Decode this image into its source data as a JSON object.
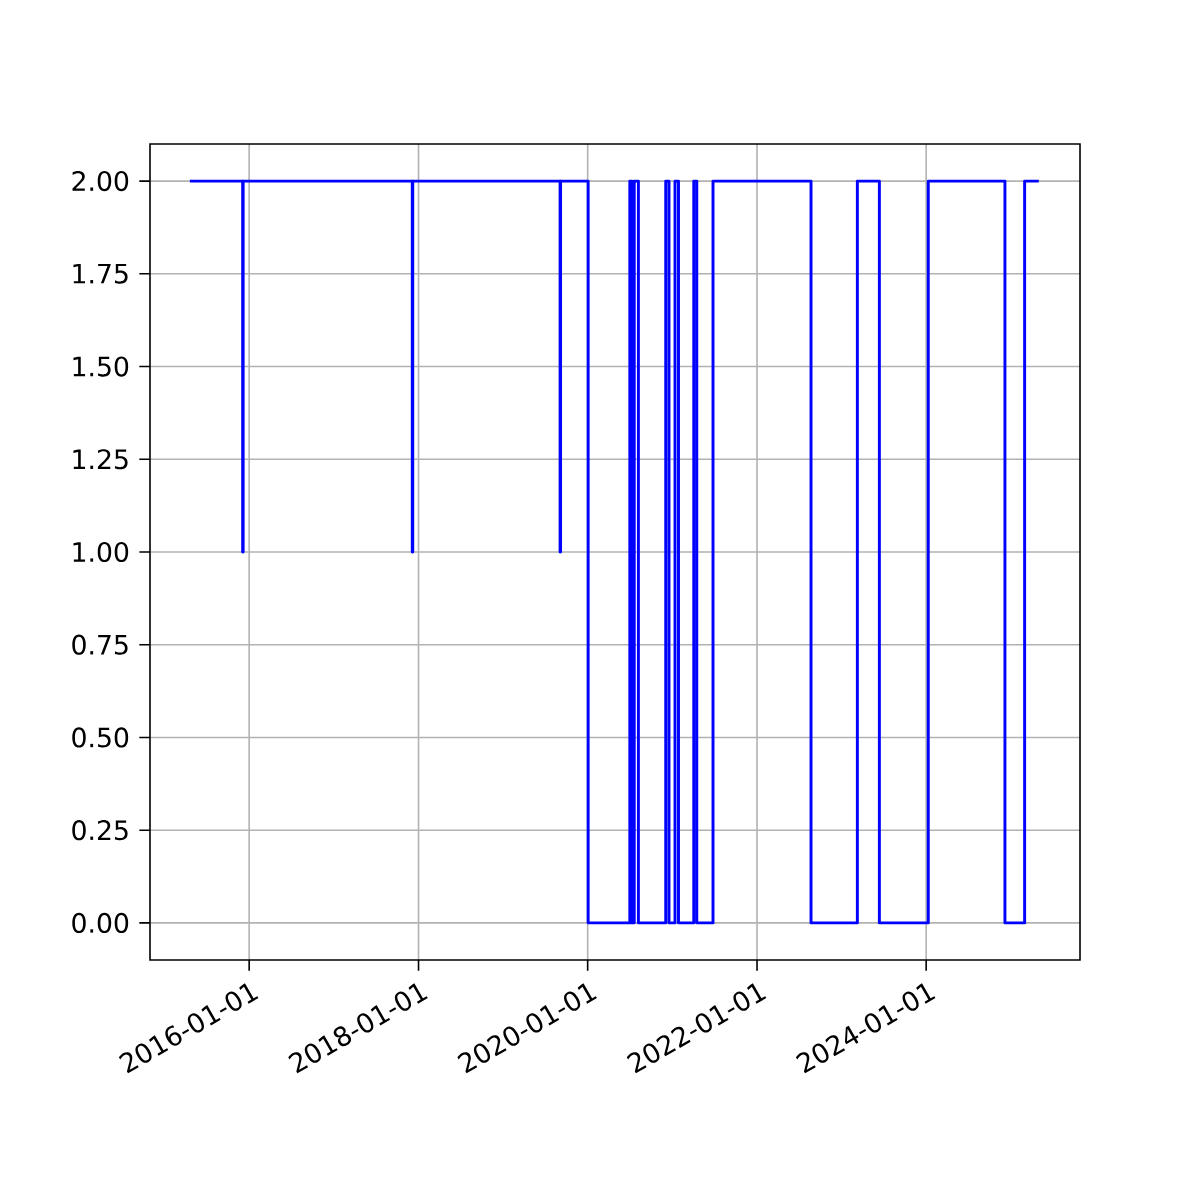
{
  "chart_data": {
    "type": "step",
    "x": [
      "2015-04-20",
      "2015-12-04",
      "2015-12-06",
      "2017-12-05",
      "2017-12-07",
      "2019-09-04",
      "2019-09-06",
      "2020-01-03",
      "2020-07-01",
      "2020-07-10",
      "2020-07-20",
      "2020-08-07",
      "2020-12-03",
      "2020-12-17",
      "2021-01-12",
      "2021-01-27",
      "2021-04-03",
      "2021-04-16",
      "2021-06-25",
      "2022-08-22",
      "2023-03-10",
      "2023-06-13",
      "2024-01-10",
      "2024-12-06",
      "2025-03-01",
      "2025-05-01"
    ],
    "series": [
      {
        "color": "#0000ff",
        "values": [
          2,
          1,
          2,
          1,
          2,
          1,
          2,
          0,
          2,
          0,
          2,
          0,
          2,
          0,
          2,
          0,
          2,
          0,
          2,
          0,
          2,
          0,
          2,
          0,
          2,
          2
        ]
      }
    ],
    "xlim": [
      "2014-10-30",
      "2025-10-26"
    ],
    "xticks": [
      {
        "value": "2016-01-01",
        "label": "2016-01-01"
      },
      {
        "value": "2018-01-01",
        "label": "2018-01-01"
      },
      {
        "value": "2020-01-01",
        "label": "2020-01-01"
      },
      {
        "value": "2022-01-01",
        "label": "2022-01-01"
      },
      {
        "value": "2024-01-01",
        "label": "2024-01-01"
      }
    ],
    "ylim": [
      -0.1,
      2.1
    ],
    "yticks": [
      {
        "value": 0,
        "label": "0.00"
      },
      {
        "value": 0.25,
        "label": "0.25"
      },
      {
        "value": 0.5,
        "label": "0.50"
      },
      {
        "value": 0.75,
        "label": "0.75"
      },
      {
        "value": 1,
        "label": "1.00"
      },
      {
        "value": 1.25,
        "label": "1.25"
      },
      {
        "value": 1.5,
        "label": "1.50"
      },
      {
        "value": 1.75,
        "label": "1.75"
      },
      {
        "value": 2,
        "label": "2.00"
      }
    ],
    "grid": true,
    "marker": "none",
    "line_style": "solid"
  }
}
